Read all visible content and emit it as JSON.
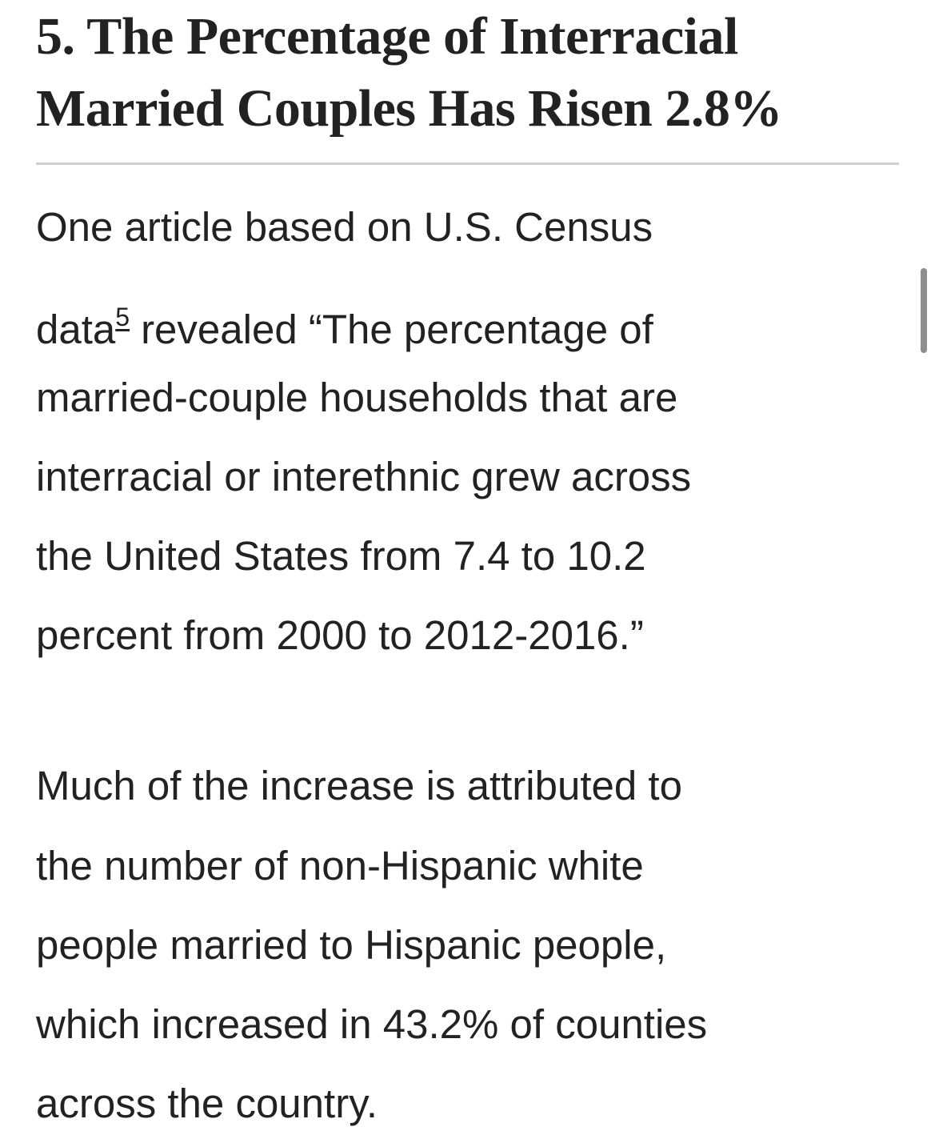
{
  "header": {
    "title_lines": [
      "5. The Percentage of Interracial",
      "Married Couples Has Risen 2.8%"
    ]
  },
  "paragraphs": [
    {
      "lines": [
        "One article based on U.S. Census",
        {
          "before": "data",
          "footnote": "5",
          "after": "revealed “The percentage of"
        },
        "married-couple households that are",
        "interracial or interethnic grew across",
        "the United States from 7.4 to 10.2",
        "percent from 2000 to 2012-2016.”"
      ]
    },
    {
      "lines": [
        "Much of the increase is attributed to",
        "the number of non-Hispanic white",
        "people married to Hispanic people,",
        "which increased in 43.2% of counties",
        "across the country."
      ]
    }
  ]
}
